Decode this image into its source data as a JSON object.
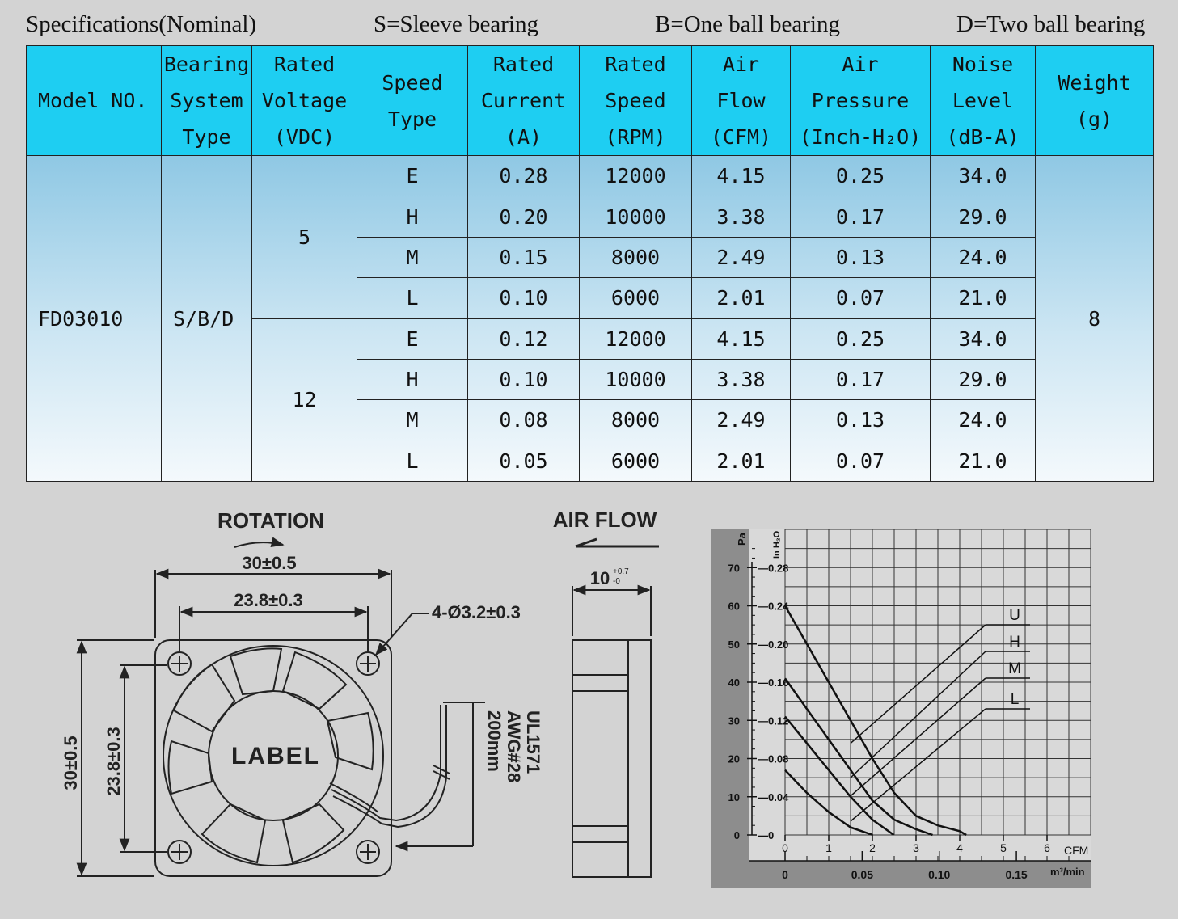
{
  "header": {
    "spec": "Specifications(Nominal)",
    "s": "S=Sleeve bearing",
    "b": "B=One ball bearing",
    "d": "D=Two ball bearing"
  },
  "table": {
    "columns": [
      [
        "Model NO."
      ],
      [
        "Bearing",
        "System",
        "Type"
      ],
      [
        "Rated",
        "Voltage",
        "(VDC)"
      ],
      [
        "Speed",
        "Type"
      ],
      [
        "Rated",
        "Current",
        "(A)"
      ],
      [
        "Rated",
        "Speed",
        "(RPM)"
      ],
      [
        "Air",
        "Flow",
        "(CFM)"
      ],
      [
        "Air",
        "Pressure",
        "(Inch-H₂O)"
      ],
      [
        "Noise",
        "Level",
        "(dB-A)"
      ],
      [
        "Weight",
        "(g)"
      ]
    ],
    "model": "FD03010",
    "bearing": "S/B/D",
    "weight": "8",
    "groups": [
      {
        "voltage": "5",
        "rows": [
          [
            "E",
            "0.28",
            "12000",
            "4.15",
            "0.25",
            "34.0"
          ],
          [
            "H",
            "0.20",
            "10000",
            "3.38",
            "0.17",
            "29.0"
          ],
          [
            "M",
            "0.15",
            "8000",
            "2.49",
            "0.13",
            "24.0"
          ],
          [
            "L",
            "0.10",
            "6000",
            "2.01",
            "0.07",
            "21.0"
          ]
        ]
      },
      {
        "voltage": "12",
        "rows": [
          [
            "E",
            "0.12",
            "12000",
            "4.15",
            "0.25",
            "34.0"
          ],
          [
            "H",
            "0.10",
            "10000",
            "3.38",
            "0.17",
            "29.0"
          ],
          [
            "M",
            "0.08",
            "8000",
            "2.49",
            "0.13",
            "24.0"
          ],
          [
            "L",
            "0.05",
            "6000",
            "2.01",
            "0.07",
            "21.0"
          ]
        ]
      }
    ]
  },
  "drawing": {
    "rotation": "ROTATION",
    "airflow": "AIR FLOW",
    "dim_outer": "30±0.5",
    "dim_inner": "23.8±0.3",
    "dim_holes": "4-Ø3.2±0.3",
    "dim_outer_v": "30±0.5",
    "dim_inner_v": "23.8±0.3",
    "label": "LABEL",
    "wire1": "UL1571",
    "wire2": "AWG#28",
    "wire3": "200mm",
    "depth": "10",
    "depth_tol_upper": "+0.7",
    "depth_tol_lower": "-0"
  },
  "chart_data": {
    "type": "line",
    "xlabel": "CFM",
    "xlabel2": "m³/min",
    "ylabel": "Pa",
    "ylabel2": "In H₂O",
    "xlim": [
      0,
      7
    ],
    "ylim": [
      0,
      80
    ],
    "x_ticks": [
      "0",
      "1",
      "2",
      "3",
      "4",
      "5",
      "6"
    ],
    "x2_ticks": [
      "0",
      "0.05",
      "0.10",
      "0.15"
    ],
    "y_ticks": [
      "0",
      "10",
      "20",
      "30",
      "40",
      "50",
      "60",
      "70"
    ],
    "y2_ticks": [
      "0",
      "0.04",
      "0.08",
      "0.12",
      "0.16",
      "0.20",
      "0.24",
      "0.28"
    ],
    "grid": true,
    "series": [
      {
        "name": "U",
        "points": [
          [
            0,
            60
          ],
          [
            0.5,
            50
          ],
          [
            1,
            40
          ],
          [
            1.5,
            30
          ],
          [
            2,
            20
          ],
          [
            2.5,
            11
          ],
          [
            3,
            5
          ],
          [
            3.5,
            2.5
          ],
          [
            4,
            1
          ],
          [
            4.15,
            0
          ]
        ]
      },
      {
        "name": "H",
        "points": [
          [
            0,
            41
          ],
          [
            0.5,
            33
          ],
          [
            1,
            25
          ],
          [
            1.5,
            17
          ],
          [
            2,
            9
          ],
          [
            2.5,
            4
          ],
          [
            3,
            1.5
          ],
          [
            3.38,
            0
          ]
        ]
      },
      {
        "name": "M",
        "points": [
          [
            0,
            31
          ],
          [
            0.5,
            24
          ],
          [
            1,
            17
          ],
          [
            1.5,
            10
          ],
          [
            2,
            4
          ],
          [
            2.49,
            0
          ]
        ]
      },
      {
        "name": "L",
        "points": [
          [
            0,
            17
          ],
          [
            0.5,
            11
          ],
          [
            1,
            6
          ],
          [
            1.5,
            2
          ],
          [
            2.01,
            0
          ]
        ]
      }
    ]
  }
}
